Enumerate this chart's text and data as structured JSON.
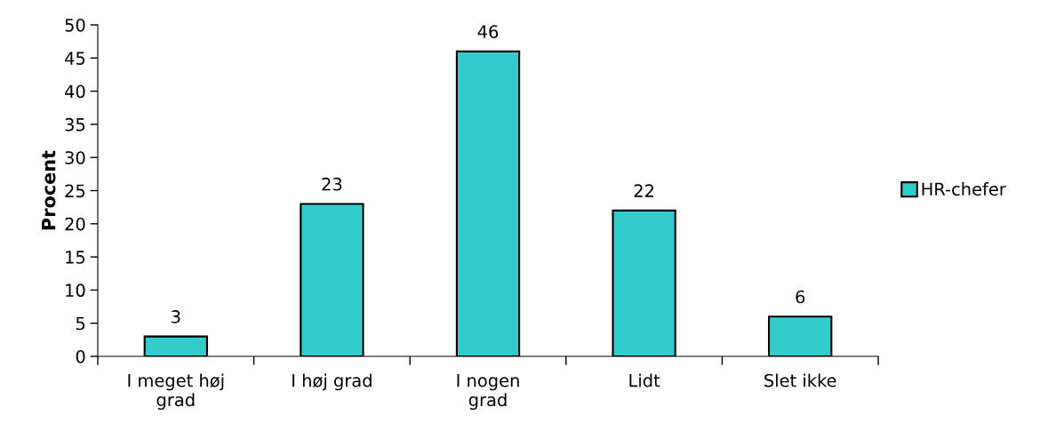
{
  "chart_data": {
    "type": "bar",
    "ylabel": "Procent",
    "categories": [
      "I meget høj grad",
      "I høj grad",
      "I nogen grad",
      "Lidt",
      "Slet ikke"
    ],
    "series": [
      {
        "name": "HR-chefer",
        "color": "#33cccc",
        "values": [
          3,
          23,
          46,
          22,
          6
        ]
      }
    ],
    "ylim": [
      0,
      50
    ],
    "yticks": [
      0,
      5,
      10,
      15,
      20,
      25,
      30,
      35,
      40,
      45,
      50
    ],
    "data_labels": true,
    "legend": "right",
    "grid": false
  }
}
